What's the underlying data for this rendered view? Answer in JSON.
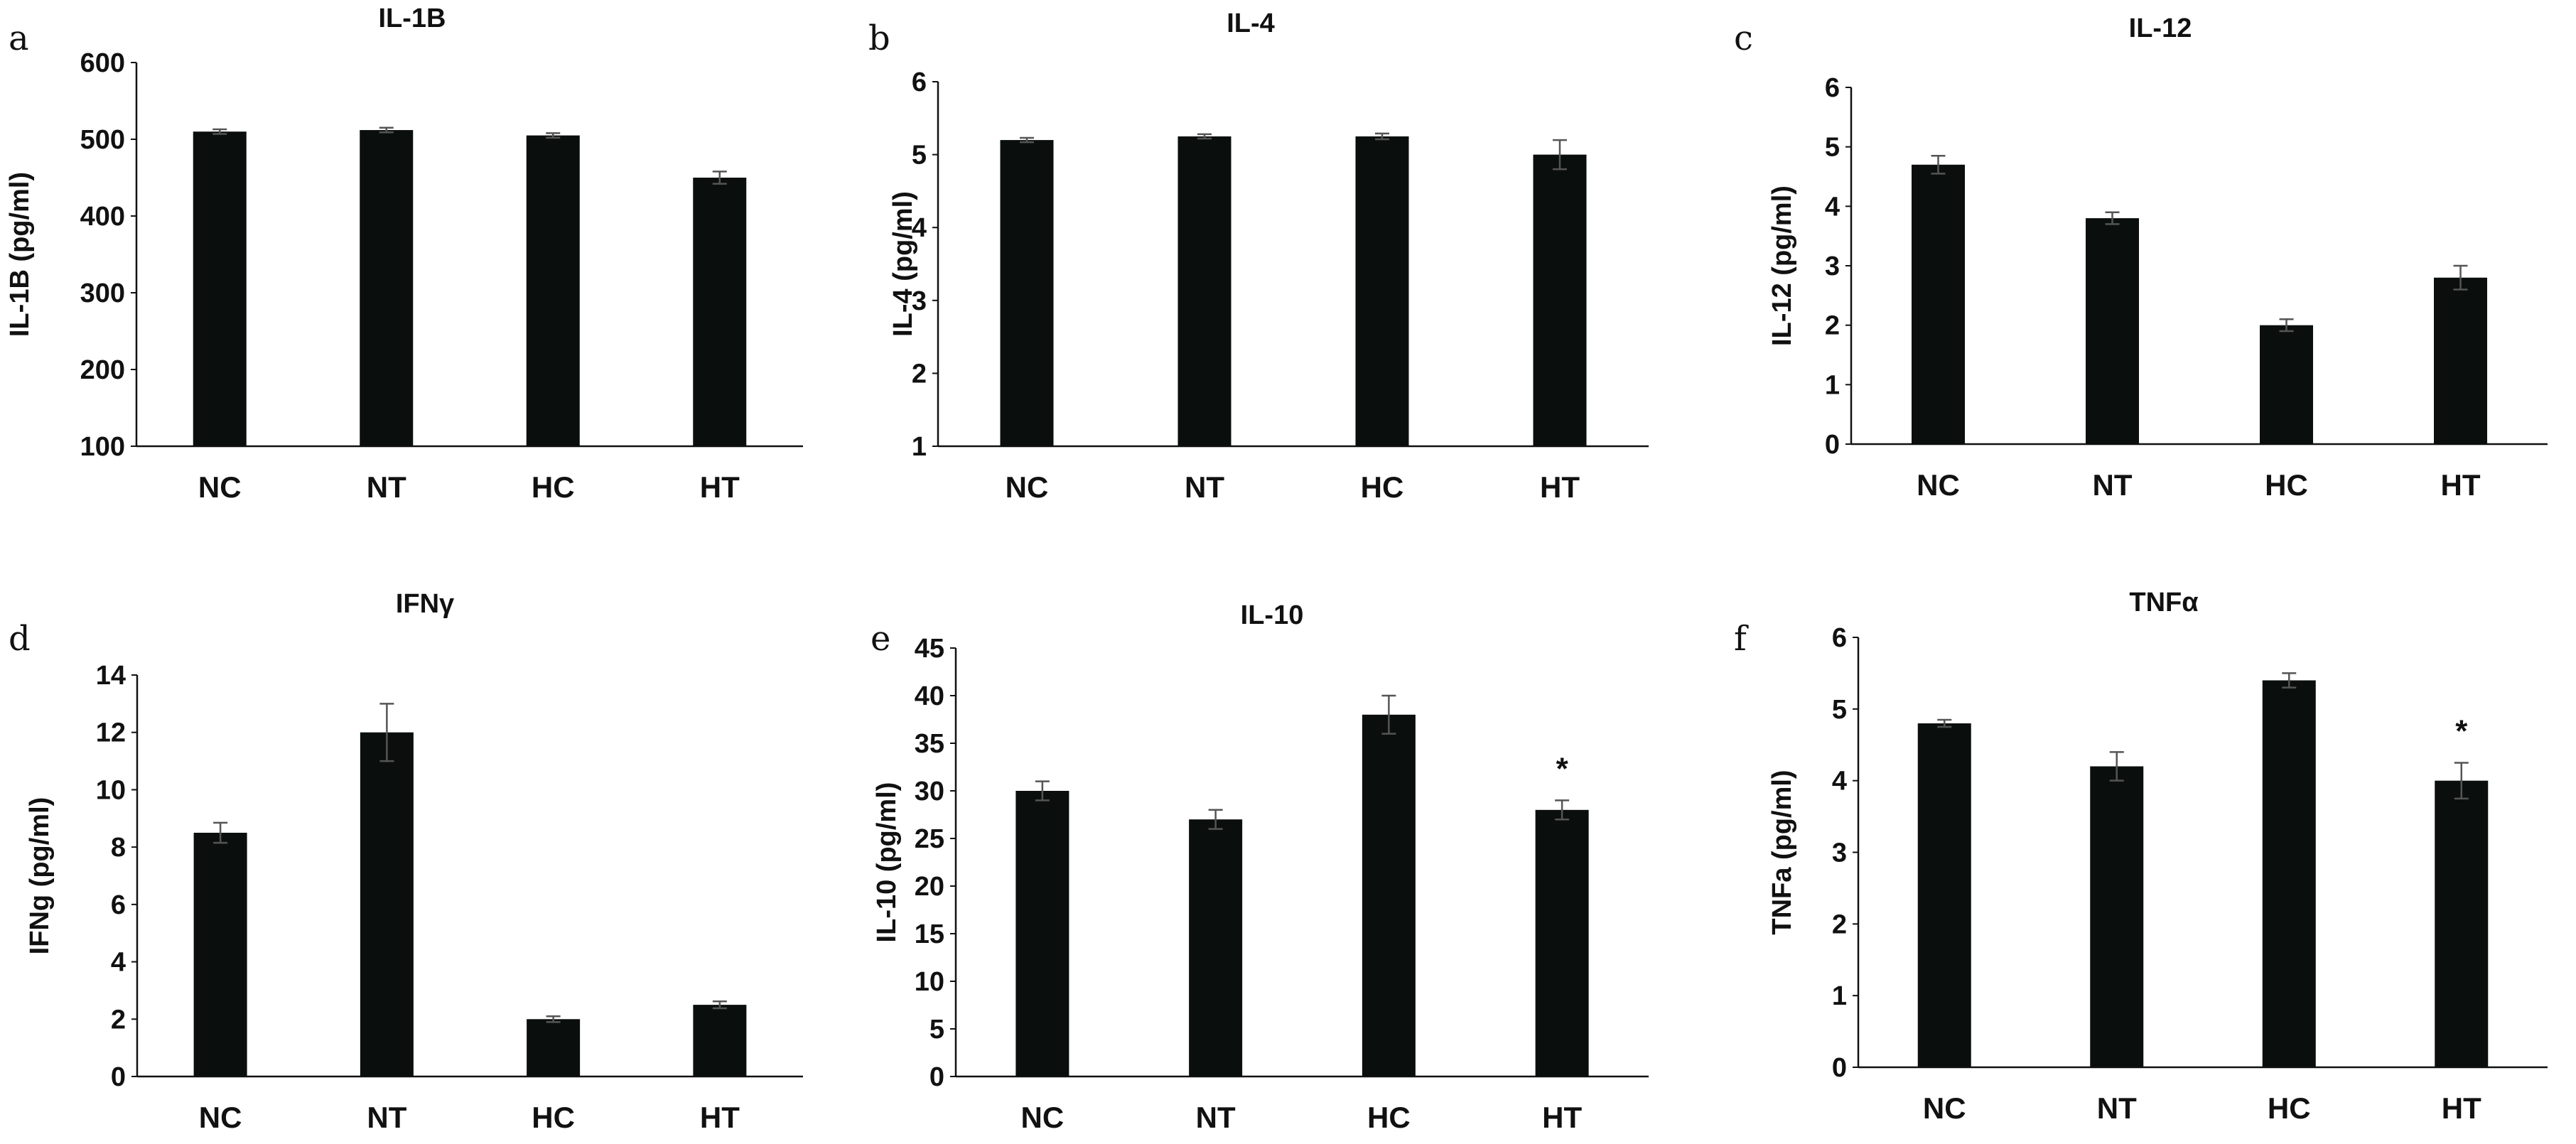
{
  "colors": {
    "bar": "#0a0f0d",
    "axis": "#111111",
    "errorbar": "#555555",
    "background": "#ffffff"
  },
  "chart_data": [
    {
      "panel": "a",
      "type": "bar",
      "title": "IL-1B",
      "ylabel": "IL-1B (pg/ml)",
      "categories": [
        "NC",
        "NT",
        "HC",
        "HT"
      ],
      "values": [
        510,
        512,
        505,
        450
      ],
      "errors": [
        3,
        3,
        3,
        8
      ],
      "ylim": [
        100,
        600
      ],
      "yticks": [
        100,
        200,
        300,
        400,
        500,
        600
      ],
      "annotations": [
        "",
        "",
        "",
        ""
      ]
    },
    {
      "panel": "b",
      "type": "bar",
      "title": "IL-4",
      "ylabel": "IL-4 (pg/ml)",
      "categories": [
        "NC",
        "NT",
        "HC",
        "HT"
      ],
      "values": [
        5.2,
        5.25,
        5.25,
        5.0
      ],
      "errors": [
        0.03,
        0.03,
        0.04,
        0.2
      ],
      "ylim": [
        1,
        6
      ],
      "yticks": [
        1,
        2,
        3,
        4,
        5,
        6
      ],
      "annotations": [
        "",
        "",
        "",
        ""
      ]
    },
    {
      "panel": "c",
      "type": "bar",
      "title": "IL-12",
      "ylabel": "IL-12 (pg/ml)",
      "categories": [
        "NC",
        "NT",
        "HC",
        "HT"
      ],
      "values": [
        4.7,
        3.8,
        2.0,
        2.8
      ],
      "errors": [
        0.15,
        0.1,
        0.1,
        0.2
      ],
      "ylim": [
        0,
        6
      ],
      "yticks": [
        0,
        1,
        2,
        3,
        4,
        5,
        6
      ],
      "annotations": [
        "",
        "",
        "",
        ""
      ]
    },
    {
      "panel": "d",
      "type": "bar",
      "title": "IFNγ",
      "ylabel": "IFNg (pg/ml)",
      "categories": [
        "NC",
        "NT",
        "HC",
        "HT"
      ],
      "values": [
        8.5,
        12.0,
        2.0,
        2.5
      ],
      "errors": [
        0.35,
        1.0,
        0.1,
        0.12
      ],
      "ylim": [
        0,
        14
      ],
      "yticks": [
        0,
        2,
        4,
        6,
        8,
        10,
        12,
        14
      ],
      "annotations": [
        "",
        "",
        "",
        ""
      ]
    },
    {
      "panel": "e",
      "type": "bar",
      "title": "IL-10",
      "ylabel": "IL-10 (pg/ml)",
      "categories": [
        "NC",
        "NT",
        "HC",
        "HT"
      ],
      "values": [
        30,
        27,
        38,
        28
      ],
      "errors": [
        1.0,
        1.0,
        2.0,
        1.0
      ],
      "ylim": [
        0,
        45
      ],
      "yticks": [
        0,
        5,
        10,
        15,
        20,
        25,
        30,
        35,
        40,
        45
      ],
      "annotations": [
        "",
        "",
        "",
        "*"
      ]
    },
    {
      "panel": "f",
      "type": "bar",
      "title": "TNFα",
      "ylabel": "TNFa (pg/ml)",
      "categories": [
        "NC",
        "NT",
        "HC",
        "HT"
      ],
      "values": [
        4.8,
        4.2,
        5.4,
        4.0
      ],
      "errors": [
        0.05,
        0.2,
        0.1,
        0.25
      ],
      "ylim": [
        0,
        6
      ],
      "yticks": [
        0,
        1,
        2,
        3,
        4,
        5,
        6
      ],
      "annotations": [
        "",
        "",
        "",
        "*"
      ]
    }
  ]
}
